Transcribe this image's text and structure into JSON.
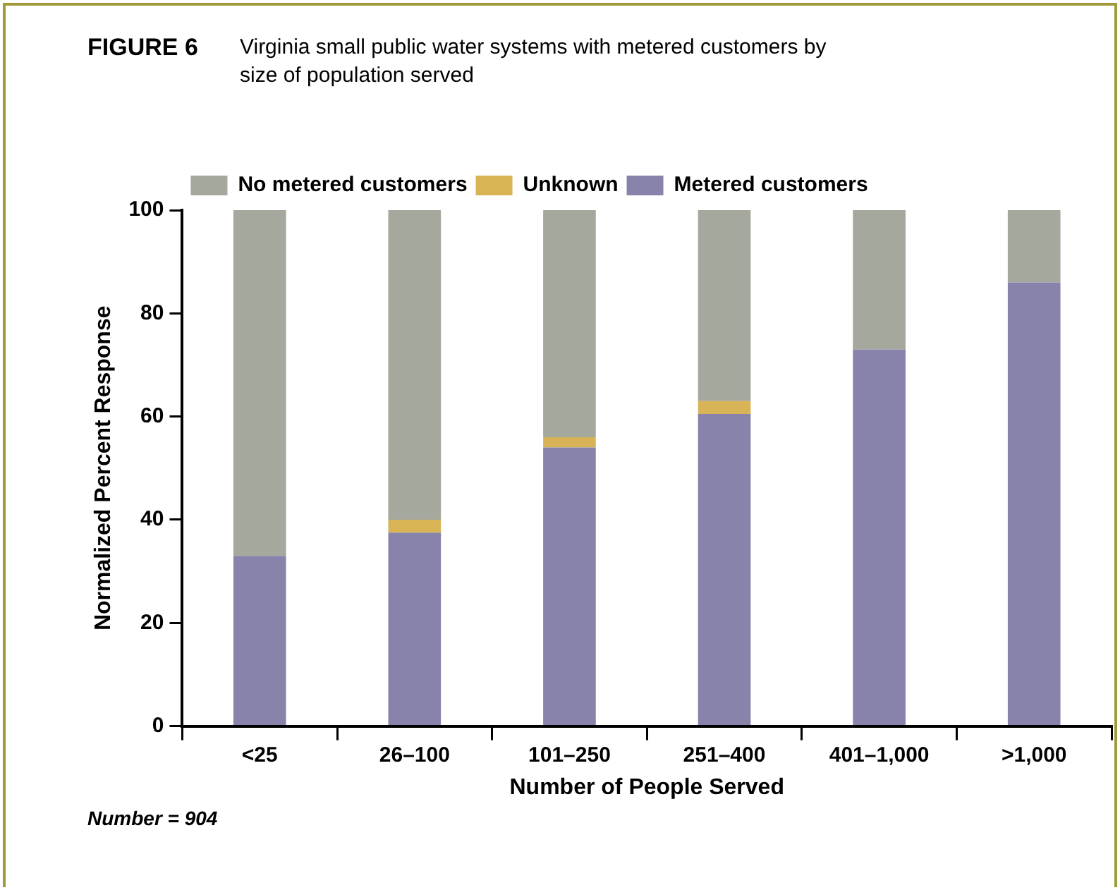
{
  "chart_data": {
    "type": "bar",
    "title": "Virginia small public water systems with metered customers by size of population served",
    "xlabel": "Number of People Served",
    "ylabel": "Normalized Percent Response",
    "annotations": [
      "FIGURE 6",
      "Number = 904"
    ],
    "categories": [
      "<25",
      "26–100",
      "101–250",
      "251–400",
      "401–1,000",
      ">1,000"
    ],
    "stacked": true,
    "series": [
      {
        "name": "Metered customers",
        "color": "#8883ab",
        "values": [
          33,
          37.5,
          54,
          60.5,
          73,
          86
        ]
      },
      {
        "name": "Unknown",
        "color": "#d8b456",
        "values": [
          0,
          2.5,
          2,
          2.5,
          0,
          0
        ]
      },
      {
        "name": "No metered customers",
        "color": "#a5a89d",
        "values": [
          67,
          60,
          44,
          37,
          27,
          14
        ]
      }
    ],
    "ylim": [
      0,
      100
    ],
    "yticks": [
      0,
      20,
      40,
      60,
      80,
      100
    ],
    "grid": false,
    "legend": "top left"
  }
}
